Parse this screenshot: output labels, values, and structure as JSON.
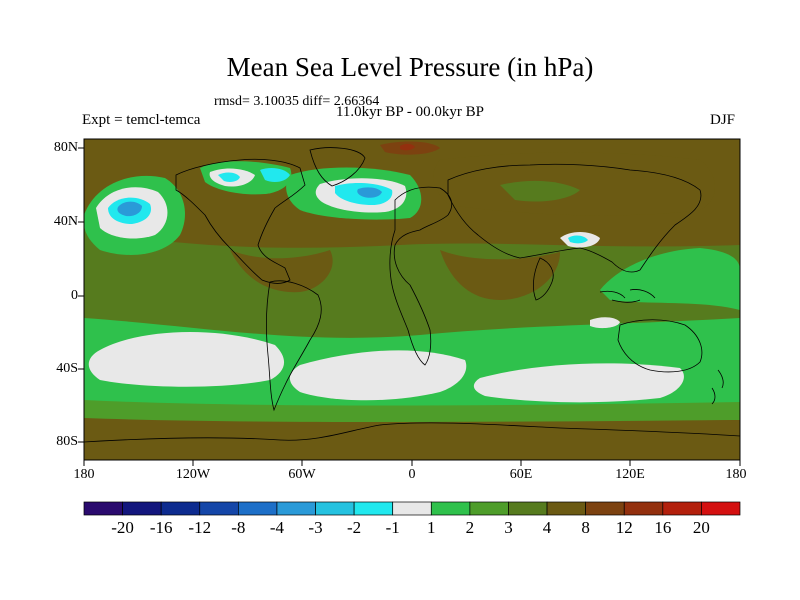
{
  "header": {
    "title": "Mean Sea Level Pressure (in hPa)",
    "stats": "rmsd= 3.10035 diff= 2.66364",
    "experiment": "Expt = temcl-temca",
    "period": "11.0kyr BP - 00.0kyr BP",
    "season": "DJF"
  },
  "axes": {
    "lat_labels": [
      "80N",
      "40N",
      "0",
      "40S",
      "80S"
    ],
    "lon_labels": [
      "180",
      "120W",
      "60W",
      "0",
      "60E",
      "120E",
      "180"
    ]
  },
  "colorbar": {
    "labels": [
      "-20",
      "-16",
      "-12",
      "-8",
      "-4",
      "-3",
      "-2",
      "-1",
      "1",
      "2",
      "3",
      "4",
      "8",
      "12",
      "16",
      "20"
    ],
    "colors": [
      "#2a0a6e",
      "#13167d",
      "#0d2b8f",
      "#1446a8",
      "#1d6fc8",
      "#2a9ad8",
      "#25c2e0",
      "#21e8ee",
      "#e8e8e8",
      "#2fc14c",
      "#4e9d2a",
      "#567b1e",
      "#6b5a13",
      "#7c4210",
      "#93300e",
      "#b3200c",
      "#d41010"
    ]
  },
  "map": {
    "background_color": "#6b5a13",
    "continent_outline_color": "#000000"
  }
}
